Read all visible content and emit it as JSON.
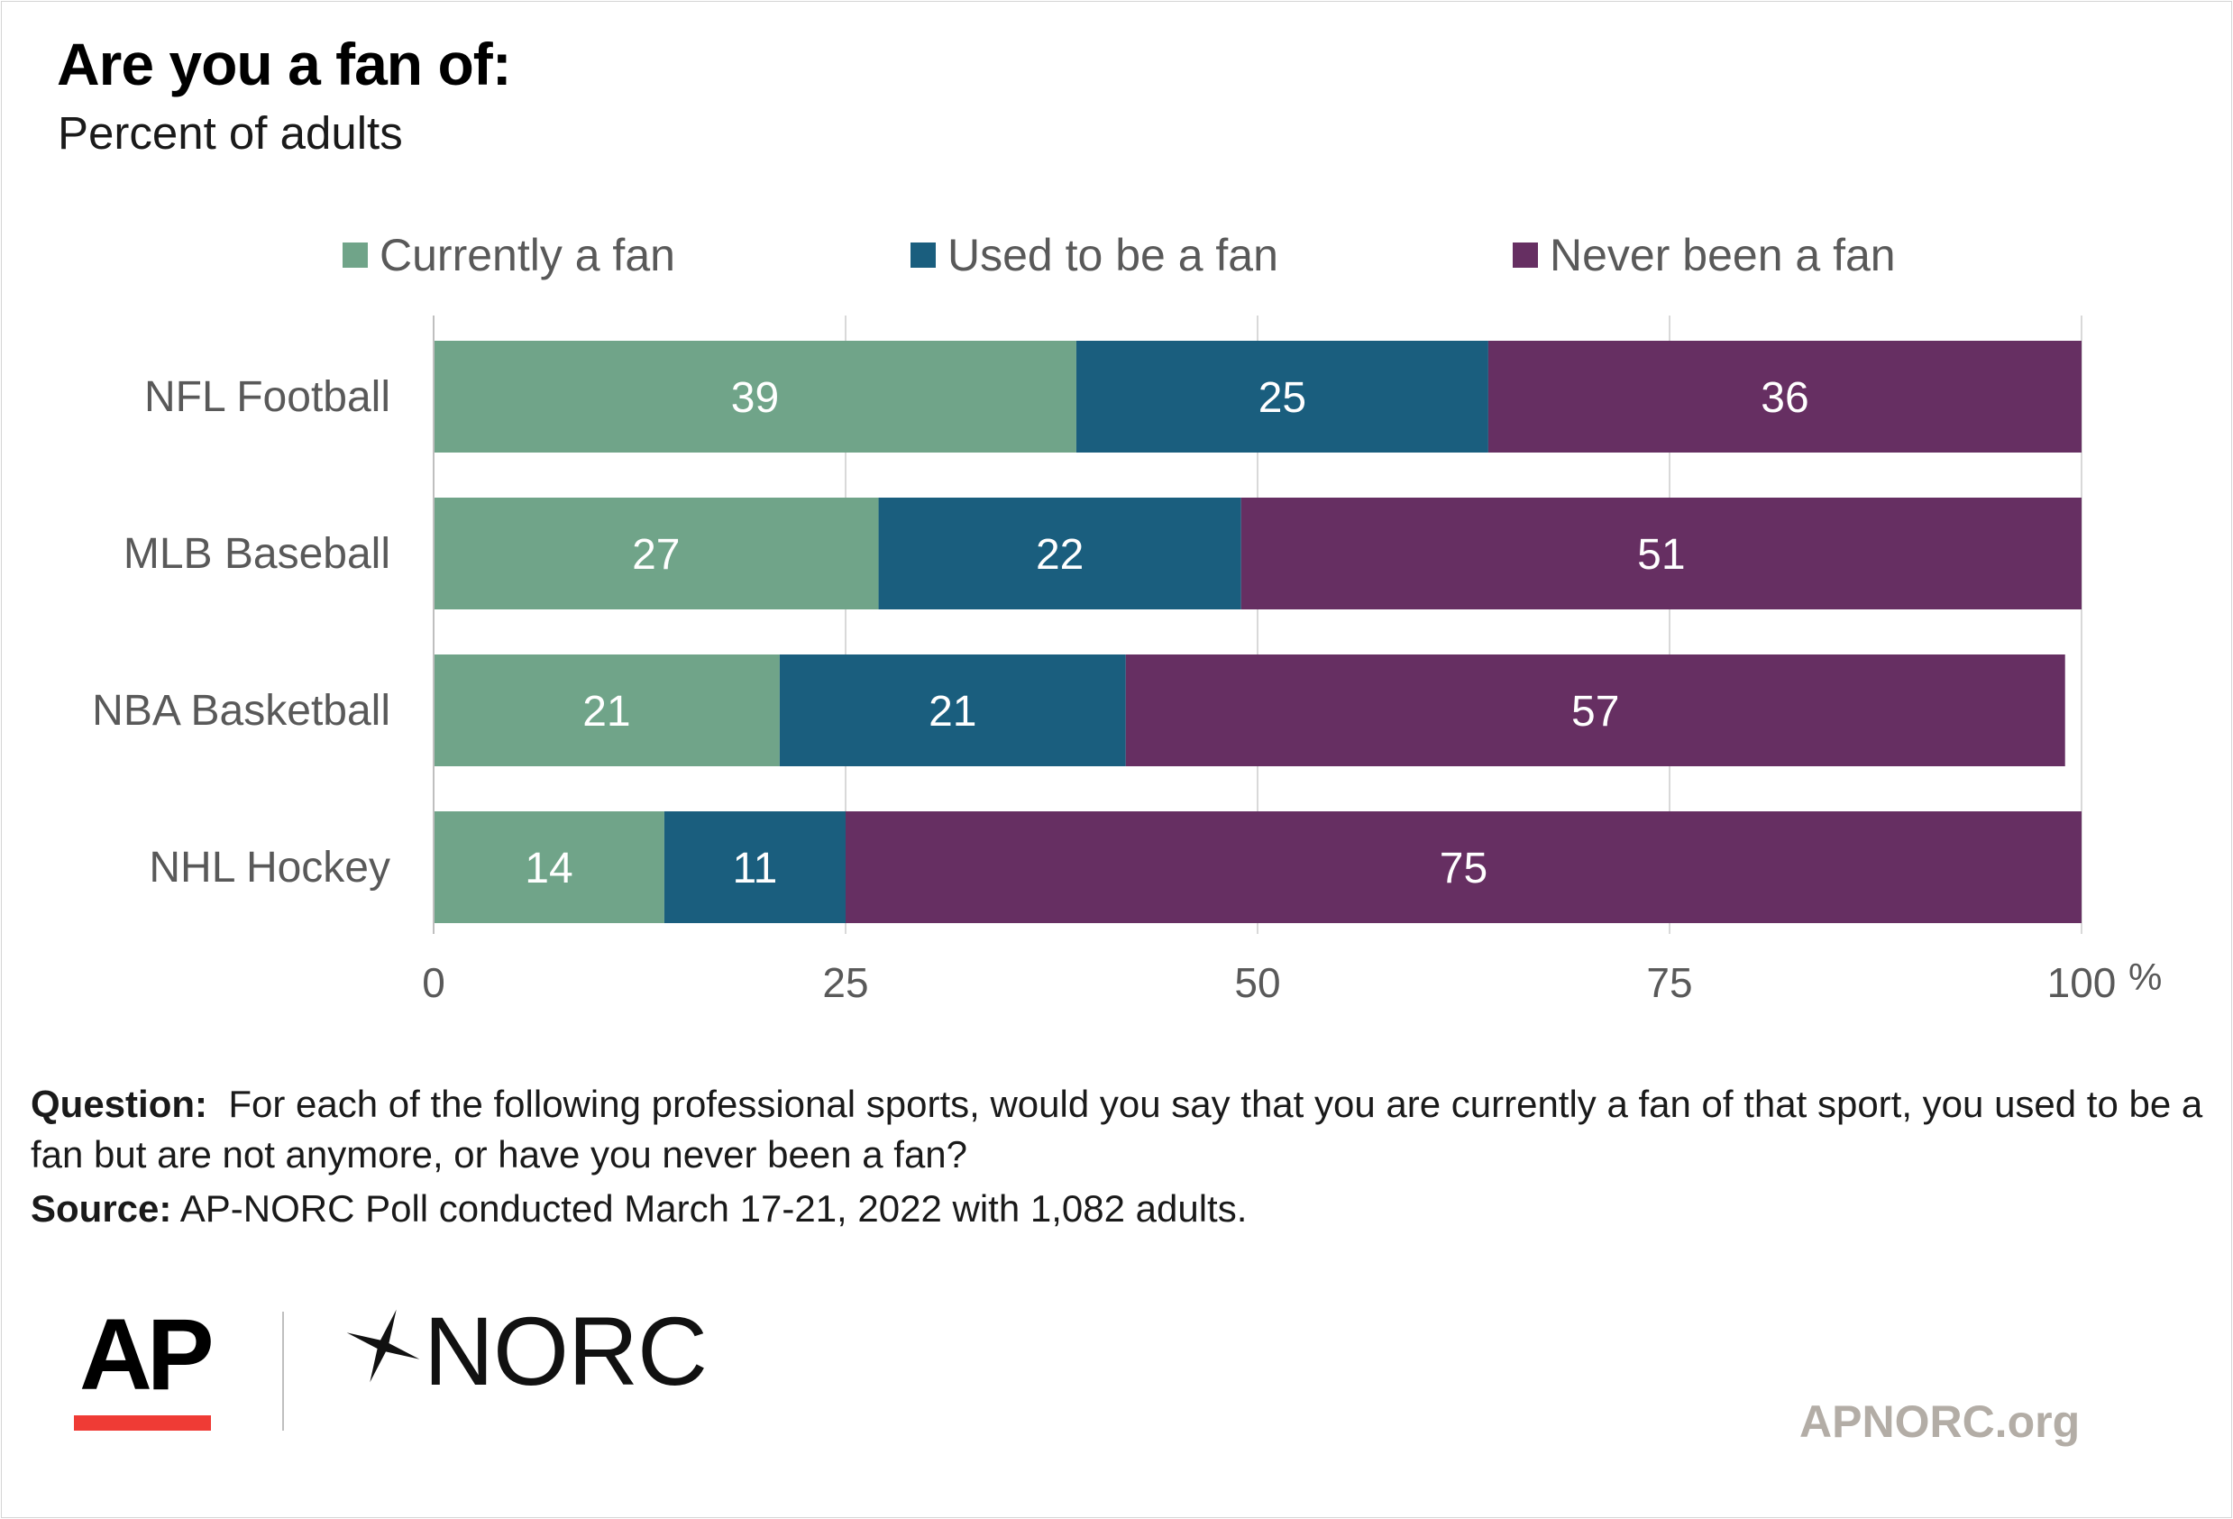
{
  "title": "Are you a fan of:",
  "subtitle": "Percent of adults",
  "legend": [
    {
      "label": "Currently a fan",
      "color": "#70a489"
    },
    {
      "label": "Used to be a fan",
      "color": "#1a5e7e"
    },
    {
      "label": "Never been a fan",
      "color": "#662f62"
    }
  ],
  "chart_data": {
    "type": "bar",
    "orientation": "horizontal",
    "stacked": true,
    "title": "Are you a fan of:",
    "subtitle": "Percent of adults",
    "categories": [
      "NFL Football",
      "MLB Baseball",
      "NBA Basketball",
      "NHL Hockey"
    ],
    "series": [
      {
        "name": "Currently a fan",
        "values": [
          39,
          27,
          21,
          14
        ],
        "color": "#70a489"
      },
      {
        "name": "Used to be a fan",
        "values": [
          25,
          22,
          21,
          11
        ],
        "color": "#1a5e7e"
      },
      {
        "name": "Never been a fan",
        "values": [
          36,
          51,
          57,
          75
        ],
        "color": "#662f62"
      }
    ],
    "xlim": [
      0,
      100
    ],
    "xticks": [
      "0",
      "25",
      "50",
      "75",
      "100"
    ],
    "x_unit": "%",
    "grid": true,
    "legend_position": "top"
  },
  "footnote": {
    "question_label": "Question:",
    "question_text": "For each of the following professional sports, would you say that you are currently a fan of that sport, you used to be a fan but are not anymore, or have you never been a fan?",
    "source_label": "Source:",
    "source_text": "AP-NORC Poll conducted March 17-21, 2022 with 1,082 adults."
  },
  "logos": {
    "ap": "AP",
    "norc": "NORC",
    "site": "APNORC.org"
  }
}
